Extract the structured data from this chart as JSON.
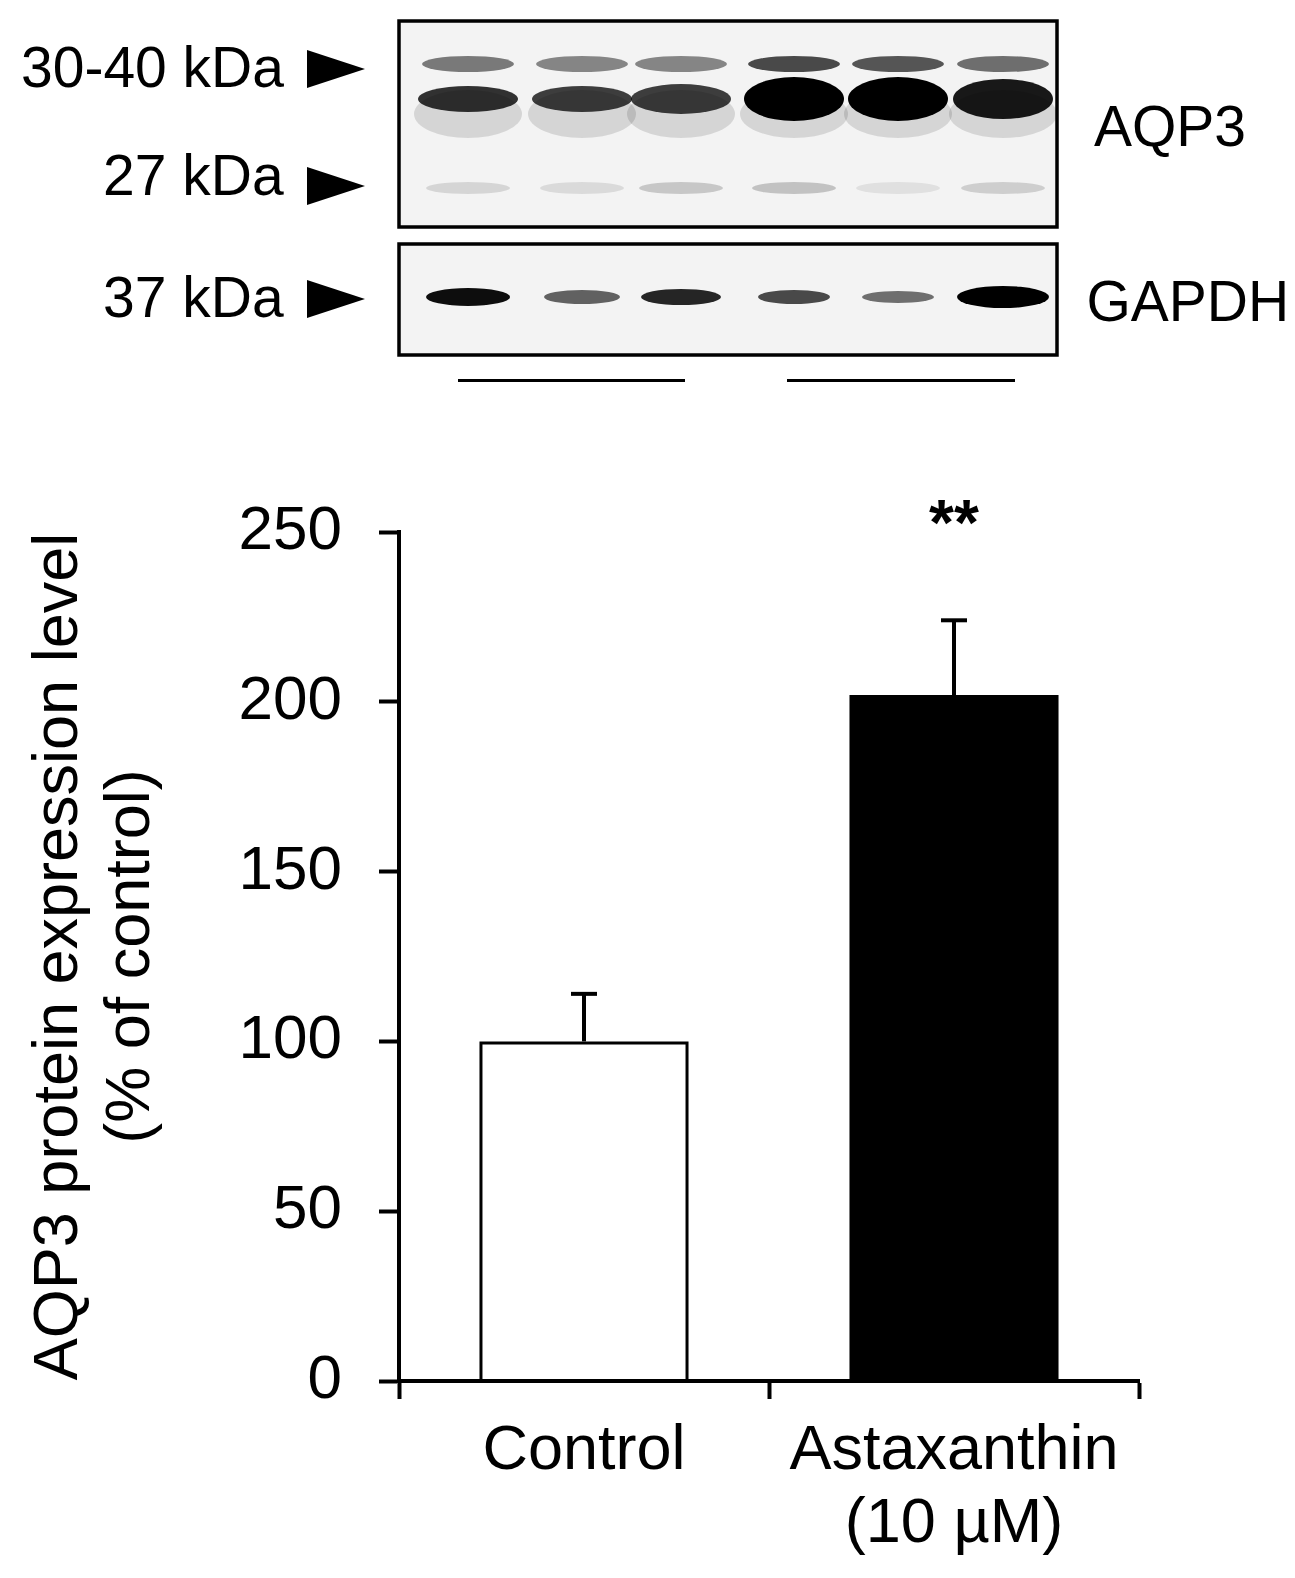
{
  "chart_data": {
    "type": "bar",
    "categories": [
      "Control",
      "Astaxanthin\n(10 µM)"
    ],
    "values": [
      100,
      202
    ],
    "colors": [
      "#ffffff",
      "#000000"
    ],
    "errors": [
      [
        100,
        114
      ],
      [
        202,
        224
      ]
    ],
    "ylabel": "AQP3 protein expression level\n(% of control)",
    "ylim": [
      0,
      250
    ],
    "yticks": [
      0,
      50,
      100,
      150,
      200,
      250
    ],
    "annotations": [
      "**",
      "30-40 kDa",
      "27 kDa",
      "37 kDa",
      "AQP3",
      "GAPDH"
    ]
  }
}
